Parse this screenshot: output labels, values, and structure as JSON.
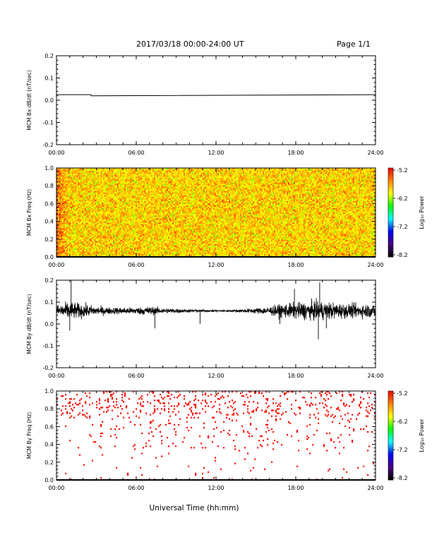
{
  "header": {
    "title": "2017/03/18  00:00-24:00 UT",
    "page": "Page 1/1"
  },
  "footer": {
    "xlabel": "Universal Time (hh:mm)"
  },
  "colors": {
    "axis": "#000000",
    "trace": "#000000",
    "spectrogram_scale": [
      "#000000",
      "#4b0082",
      "#0000ff",
      "#00ffff",
      "#00ff00",
      "#ffff00",
      "#ff8000",
      "#ff0000"
    ]
  },
  "chart_data": [
    {
      "type": "line",
      "ylabel": "MCM Bx dB/dt (nT/sec)",
      "xlim": [
        0,
        24
      ],
      "ylim": [
        -0.2,
        0.2
      ],
      "xticks": [
        "00:00",
        "06:00",
        "12:00",
        "18:00",
        "24:00"
      ],
      "yticks": [
        "0.2",
        "0.1",
        "0.0",
        "-0.1",
        "-0.2"
      ],
      "series": [
        {
          "x": [
            0,
            2.6,
            2.62,
            24
          ],
          "y": [
            0.025,
            0.025,
            0.02,
            0.025
          ]
        }
      ]
    },
    {
      "type": "heatmap",
      "ylabel": "MCM Bx Freq (Hz)",
      "xlim": [
        0,
        24
      ],
      "ylim": [
        0.0,
        1.0
      ],
      "xticks": [
        "00:00",
        "06:00",
        "12:00",
        "18:00",
        "24:00"
      ],
      "yticks": [
        "1.0",
        "0.8",
        "0.6",
        "0.4",
        "0.2",
        "0.0"
      ],
      "colorbar": {
        "label": "Log₁₀ Power",
        "ticks": [
          "-5.2",
          "-6.2",
          "-7.2",
          "-8.2"
        ],
        "range": [
          -8.2,
          -5.2
        ]
      },
      "description_values": {
        "typical_log_power": -5.9,
        "near_start_log_power": -5.4
      }
    },
    {
      "type": "line",
      "ylabel": "MCM By dB/dt (nT/sec)",
      "xlim": [
        0,
        24
      ],
      "ylim": [
        -0.2,
        0.2
      ],
      "xticks": [
        "00:00",
        "06:00",
        "12:00",
        "18:00",
        "24:00"
      ],
      "yticks": [
        "0.2",
        "0.1",
        "0.0",
        "-0.1",
        "-0.2"
      ],
      "series": [
        {
          "baseline": 0.06,
          "envelope_hours": [
            0,
            1,
            2,
            3,
            4,
            5,
            6,
            7,
            8,
            9,
            10,
            11,
            12,
            13,
            14,
            15,
            16,
            17,
            18,
            19,
            20,
            21,
            22,
            23,
            24
          ],
          "envelope_amplitude": [
            0.025,
            0.04,
            0.03,
            0.02,
            0.015,
            0.015,
            0.015,
            0.02,
            0.012,
            0.01,
            0.007,
            0.006,
            0.005,
            0.005,
            0.007,
            0.012,
            0.018,
            0.03,
            0.035,
            0.04,
            0.04,
            0.035,
            0.03,
            0.03,
            0.03
          ],
          "spikes": [
            {
              "x": 1.1,
              "y": 0.2
            },
            {
              "x": 1.0,
              "y": -0.03
            },
            {
              "x": 7.4,
              "y": -0.02
            },
            {
              "x": 10.8,
              "y": 0.0
            },
            {
              "x": 17.9,
              "y": 0.16
            },
            {
              "x": 19.8,
              "y": 0.19
            },
            {
              "x": 19.7,
              "y": -0.07
            },
            {
              "x": 20.3,
              "y": -0.02
            },
            {
              "x": 16.8,
              "y": 0.0
            }
          ]
        }
      ]
    },
    {
      "type": "heatmap",
      "ylabel": "MCM By Freq (Hz)",
      "xlim": [
        0,
        24
      ],
      "ylim": [
        0.0,
        1.0
      ],
      "xticks": [
        "00:00",
        "06:00",
        "12:00",
        "18:00",
        "24:00"
      ],
      "yticks": [
        "1.0",
        "0.8",
        "0.6",
        "0.4",
        "0.2",
        "0.0"
      ],
      "colorbar": {
        "label": "Log₁₀ Power",
        "ticks": [
          "-5.2",
          "-6.2",
          "-7.2",
          "-8.2"
        ],
        "range": [
          -8.2,
          -5.2
        ]
      },
      "description_values": {
        "sparse_points_log_power": -5.3,
        "density_high_above_hz": 0.7
      }
    }
  ]
}
